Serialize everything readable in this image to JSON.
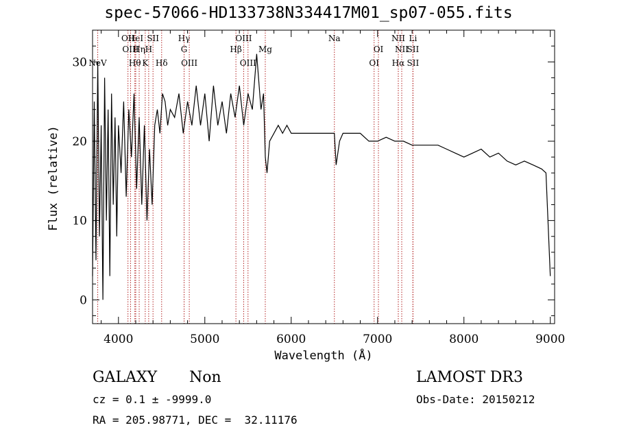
{
  "chart_data": {
    "type": "line",
    "title": "spec-57066-HD133738N334417M01_sp07-055.fits",
    "xlabel": "Wavelength (Å)",
    "ylabel": "Flux (relative)",
    "xlim": [
      3700,
      9050
    ],
    "ylim": [
      -3,
      34
    ],
    "xticks": [
      4000,
      5000,
      6000,
      7000,
      8000,
      9000
    ],
    "yticks": [
      0,
      10,
      20,
      30
    ],
    "grid": false,
    "series": [
      {
        "x": [
          3700,
          3720,
          3740,
          3760,
          3780,
          3800,
          3820,
          3840,
          3860,
          3880,
          3900,
          3920,
          3940,
          3960,
          3980,
          4000,
          4030,
          4060,
          4090,
          4120,
          4150,
          4180,
          4210,
          4240,
          4270,
          4300,
          4330,
          4360,
          4390,
          4420,
          4450,
          4480,
          4510,
          4540,
          4570,
          4600,
          4650,
          4700,
          4750,
          4800,
          4850,
          4900,
          4950,
          5000,
          5050,
          5100,
          5150,
          5200,
          5250,
          5300,
          5350,
          5400,
          5450,
          5500,
          5550,
          5600,
          5650,
          5680,
          5700,
          5720,
          5750,
          5800,
          5850,
          5900,
          5950,
          6000,
          6100,
          6200,
          6300,
          6400,
          6500,
          6520,
          6560,
          6600,
          6700,
          6800,
          6900,
          7000,
          7100,
          7200,
          7300,
          7400,
          7500,
          7600,
          7700,
          7800,
          7900,
          8000,
          8100,
          8200,
          8300,
          8400,
          8500,
          8600,
          8700,
          8800,
          8900,
          8950,
          9000
        ],
        "y": [
          3,
          25,
          5,
          30,
          8,
          22,
          0,
          28,
          10,
          24,
          3,
          26,
          12,
          23,
          8,
          22,
          16,
          25,
          13,
          24,
          18,
          26,
          14,
          23,
          12,
          22,
          10,
          19,
          12,
          22,
          24,
          21,
          26,
          25,
          22,
          24,
          23,
          26,
          21,
          25,
          22,
          27,
          22,
          26,
          20,
          27,
          22,
          25,
          21,
          26,
          23,
          27,
          22,
          26,
          24,
          31,
          24,
          26,
          18,
          16,
          20,
          21,
          22,
          21,
          22,
          21,
          21,
          21,
          21,
          21,
          21,
          17,
          20,
          21,
          21,
          21,
          20,
          20,
          20.5,
          20,
          20,
          19.5,
          19.5,
          19.5,
          19.5,
          19,
          18.5,
          18,
          18.5,
          19,
          18,
          18.5,
          17.5,
          17,
          17.5,
          17,
          16.5,
          16,
          3
        ]
      }
    ],
    "lines": [
      {
        "label": "NeV",
        "x": 3760,
        "row": 3
      },
      {
        "label": "OII",
        "x": 4110,
        "row": 0
      },
      {
        "label": "OIII",
        "x": 4140,
        "row": 1
      },
      {
        "label": "HeI",
        "x": 4200,
        "row": 0
      },
      {
        "label": "Hη",
        "x": 4240,
        "row": 1
      },
      {
        "label": "Hθ",
        "x": 4190,
        "row": 3
      },
      {
        "label": "K",
        "x": 4310,
        "row": 3
      },
      {
        "label": "H",
        "x": 4350,
        "row": 1
      },
      {
        "label": "SII",
        "x": 4400,
        "row": 0
      },
      {
        "label": "Hδ",
        "x": 4500,
        "row": 3
      },
      {
        "label": "Hγ",
        "x": 4760,
        "row": 0
      },
      {
        "label": "G",
        "x": 4760,
        "row": 1
      },
      {
        "label": "OIII",
        "x": 4820,
        "row": 3
      },
      {
        "label": "Hβ",
        "x": 5360,
        "row": 1
      },
      {
        "label": "OIII",
        "x": 5450,
        "row": 0
      },
      {
        "label": "OIII",
        "x": 5500,
        "row": 3
      },
      {
        "label": "Mg",
        "x": 5700,
        "row": 1
      },
      {
        "label": "Na",
        "x": 6500,
        "row": 0
      },
      {
        "label": "OI",
        "x": 7010,
        "row": 1
      },
      {
        "label": "OI",
        "x": 6960,
        "row": 3
      },
      {
        "label": "NII",
        "x": 7240,
        "row": 0
      },
      {
        "label": "NII",
        "x": 7280,
        "row": 1
      },
      {
        "label": "Hα",
        "x": 7240,
        "row": 3
      },
      {
        "label": "SII",
        "x": 7410,
        "row": 1
      },
      {
        "label": "SII",
        "x": 7410,
        "row": 3
      },
      {
        "label": "Li",
        "x": 7410,
        "row": 0
      }
    ]
  },
  "info": {
    "class_label": "GALAXY",
    "subclass_label": "Non",
    "survey_label": "LAMOST DR3",
    "cz_text": "cz = 0.1 ± -9999.0",
    "obs_date_text": "Obs-Date: 20150212",
    "coords_text": "RA = 205.98771, DEC =  32.11176"
  }
}
